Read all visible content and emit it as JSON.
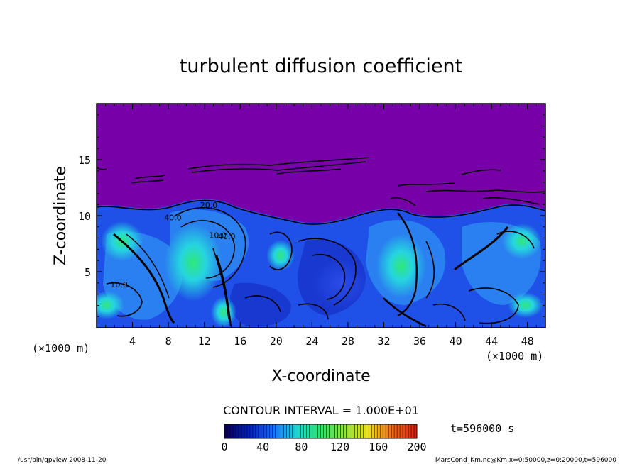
{
  "chart_data": {
    "type": "heatmap",
    "title": "turbulent diffusion coefficient",
    "xlabel": "X-coordinate",
    "ylabel": "Z-coordinate",
    "x_unit": "(×1000 m)",
    "y_unit": "(×1000 m)",
    "xlim": [
      0,
      50
    ],
    "ylim": [
      0,
      20
    ],
    "x_ticks": [
      4,
      8,
      12,
      16,
      20,
      24,
      28,
      32,
      36,
      40,
      44,
      48
    ],
    "y_ticks": [
      5,
      10,
      15
    ],
    "contour_interval": "CONTOUR INTERVAL = 1.000E+01",
    "contour_labels": [
      {
        "text": "20.0",
        "x": 12.5,
        "y": 10.7
      },
      {
        "text": "40.0",
        "x": 8.5,
        "y": 9.6
      },
      {
        "text": "10.0",
        "x": 13.5,
        "y": 8.0
      },
      {
        "text": "40.0",
        "x": 14.5,
        "y": 7.9
      },
      {
        "text": "10.0",
        "x": 2.5,
        "y": 3.6
      }
    ],
    "time_label": "t=596000 s",
    "colorbar": {
      "min": 0,
      "max": 200,
      "ticks": [
        0,
        40,
        80,
        120,
        160,
        200
      ],
      "colors": [
        "#0a0060",
        "#0020c0",
        "#1a70ff",
        "#20d0d0",
        "#30e070",
        "#90e040",
        "#f0e020",
        "#f07020",
        "#e02010"
      ]
    },
    "colors": {
      "top_region": "#7700a8",
      "field_low": "#1530e0",
      "field_mid": "#2a80f0",
      "field_high": "#25d5e0",
      "field_peak": "#30e878"
    }
  },
  "footer": {
    "left": "/usr/bin/gpview   2008-11-20",
    "right": "MarsCond_Km.nc@Km,x=0:50000,z=0:20000,t=596000"
  }
}
